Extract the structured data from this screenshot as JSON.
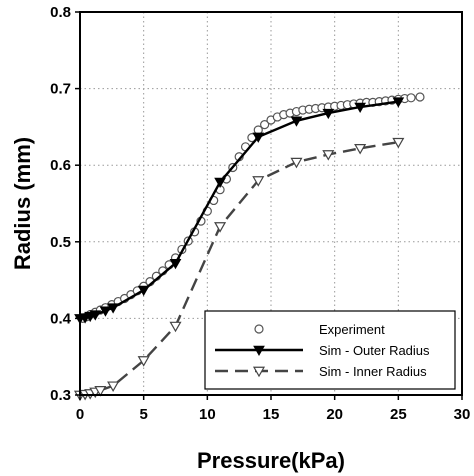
{
  "chart_data": {
    "type": "line",
    "xlabel": "Pressure(kPa)",
    "ylabel": "Radius (mm)",
    "xlim": [
      0,
      30
    ],
    "ylim": [
      0.3,
      0.8
    ],
    "x_ticks": [
      "0",
      "5",
      "10",
      "15",
      "20",
      "25",
      "30"
    ],
    "y_ticks": [
      "0.3",
      "0.4",
      "0.5",
      "0.6",
      "0.7",
      "0.8"
    ],
    "grid": true,
    "legend_position": "bottom-right",
    "series": [
      {
        "name": "Experiment",
        "style": "markers",
        "marker": "open-circle",
        "color": "#555555",
        "x": [
          0.2,
          0.5,
          0.8,
          1.2,
          1.6,
          2.0,
          2.5,
          3.0,
          3.5,
          4.0,
          4.5,
          5.0,
          5.5,
          6.0,
          6.5,
          7.0,
          7.5,
          8.0,
          8.5,
          9.0,
          9.5,
          10.0,
          10.5,
          11.0,
          11.5,
          12.0,
          12.5,
          13.0,
          13.5,
          14.0,
          14.5,
          15.0,
          15.5,
          16.0,
          16.5,
          17.0,
          17.5,
          18.0,
          18.5,
          19.0,
          19.5,
          20.0,
          20.5,
          21.0,
          21.5,
          22.0,
          22.5,
          23.0,
          23.5,
          24.0,
          24.5,
          25.0,
          25.5,
          26.0,
          26.7
        ],
        "y": [
          0.4,
          0.402,
          0.405,
          0.408,
          0.411,
          0.414,
          0.418,
          0.422,
          0.426,
          0.431,
          0.436,
          0.442,
          0.448,
          0.455,
          0.462,
          0.47,
          0.479,
          0.49,
          0.501,
          0.513,
          0.527,
          0.54,
          0.554,
          0.568,
          0.582,
          0.597,
          0.611,
          0.624,
          0.636,
          0.646,
          0.653,
          0.659,
          0.663,
          0.666,
          0.668,
          0.67,
          0.672,
          0.673,
          0.674,
          0.675,
          0.676,
          0.677,
          0.678,
          0.679,
          0.68,
          0.681,
          0.682,
          0.682,
          0.683,
          0.684,
          0.685,
          0.686,
          0.687,
          0.688,
          0.689
        ]
      },
      {
        "name": "Sim - Outer Radius",
        "style": "solid",
        "marker": "filled-triangle-down",
        "color": "#000000",
        "x": [
          0,
          0.4,
          0.8,
          1.2,
          2.0,
          2.6,
          5.0,
          7.5,
          11.0,
          14.0,
          17.0,
          19.5,
          22.0,
          25.0
        ],
        "y": [
          0.4,
          0.401,
          0.403,
          0.405,
          0.41,
          0.414,
          0.437,
          0.472,
          0.578,
          0.637,
          0.658,
          0.668,
          0.676,
          0.683
        ]
      },
      {
        "name": "Sim - Inner Radius",
        "style": "dashed",
        "marker": "open-triangle-down",
        "color": "#444444",
        "x": [
          0,
          0.4,
          0.8,
          1.2,
          1.6,
          2.6,
          5.0,
          7.5,
          11.0,
          14.0,
          17.0,
          19.5,
          22.0,
          25.0
        ],
        "y": [
          0.3,
          0.301,
          0.302,
          0.304,
          0.306,
          0.312,
          0.345,
          0.39,
          0.52,
          0.58,
          0.604,
          0.614,
          0.622,
          0.63
        ]
      }
    ]
  }
}
